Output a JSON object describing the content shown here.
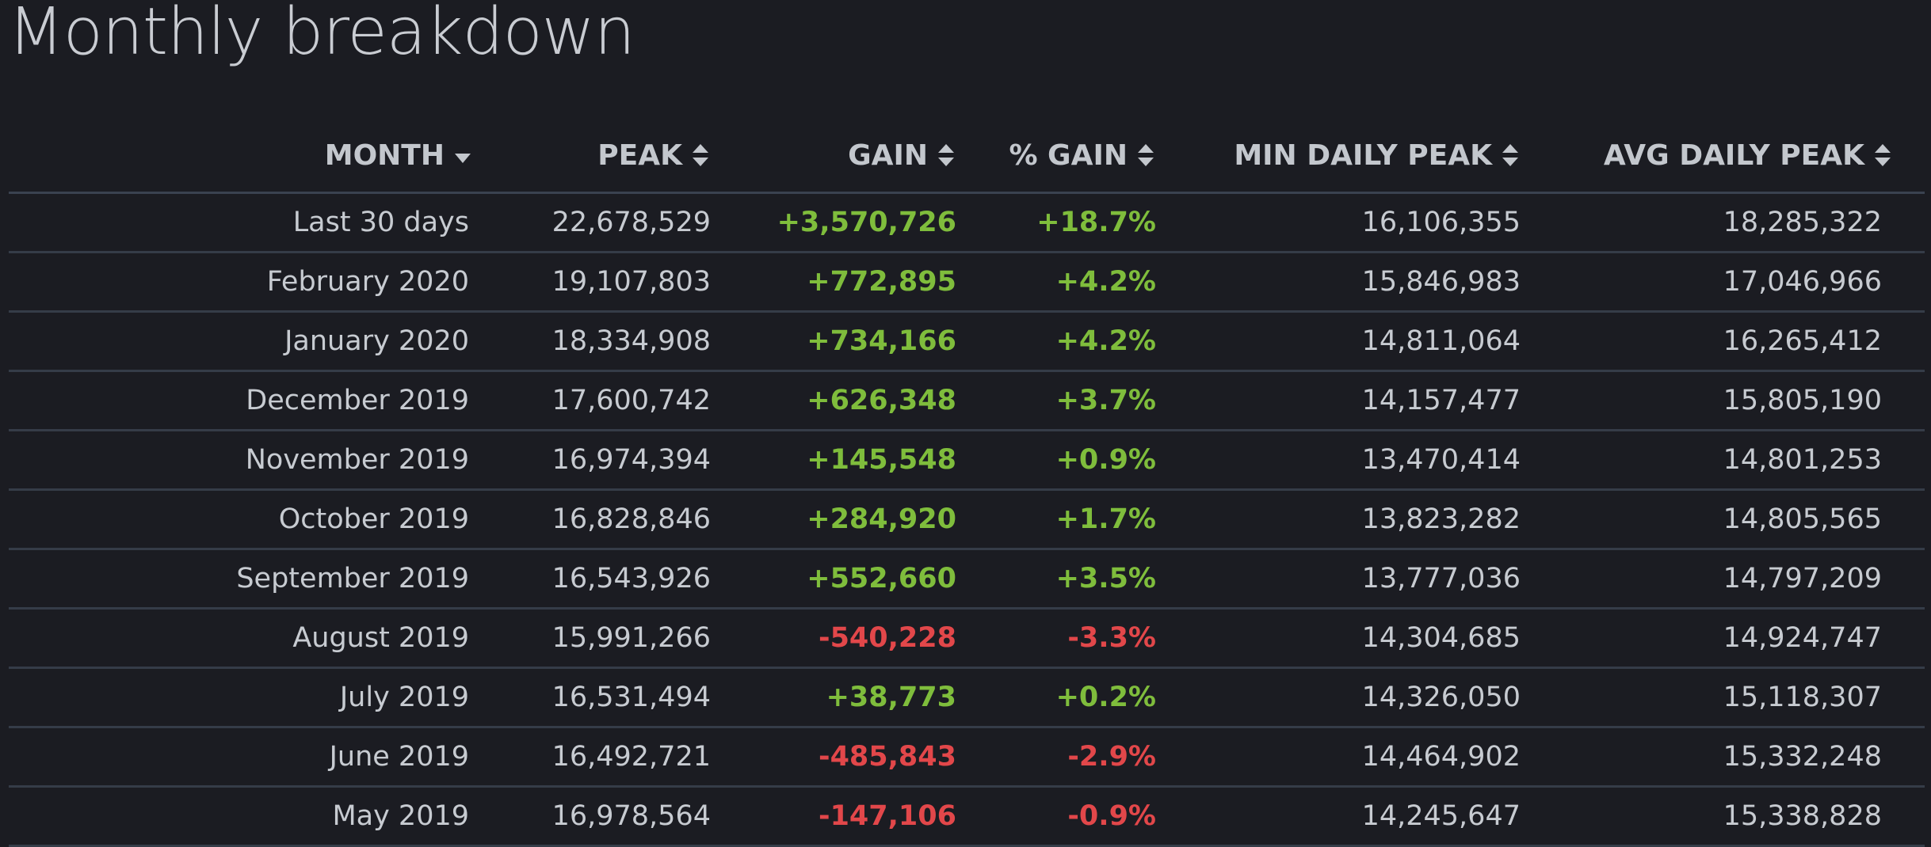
{
  "page": {
    "title": "Monthly breakdown"
  },
  "colors": {
    "background": "#1b1c22",
    "positive": "#7fbd3c",
    "negative": "#e2474a",
    "text": "#c7cbd1",
    "divider": "#353c48"
  },
  "table": {
    "headers": [
      {
        "label": "MONTH",
        "icon": "sort-desc-icon"
      },
      {
        "label": "PEAK",
        "icon": "sort-icon"
      },
      {
        "label": "GAIN",
        "icon": "sort-icon"
      },
      {
        "label": "% GAIN",
        "icon": "sort-icon"
      },
      {
        "label": "MIN DAILY PEAK",
        "icon": "sort-icon"
      },
      {
        "label": "AVG DAILY PEAK",
        "icon": "sort-icon"
      }
    ],
    "rows": [
      {
        "month": "Last 30 days",
        "peak": "22,678,529",
        "gain": "+3,570,726",
        "pct_gain": "+18.7%",
        "min_daily_peak": "16,106,355",
        "avg_daily_peak": "18,285,322",
        "trend": "pos"
      },
      {
        "month": "February 2020",
        "peak": "19,107,803",
        "gain": "+772,895",
        "pct_gain": "+4.2%",
        "min_daily_peak": "15,846,983",
        "avg_daily_peak": "17,046,966",
        "trend": "pos"
      },
      {
        "month": "January 2020",
        "peak": "18,334,908",
        "gain": "+734,166",
        "pct_gain": "+4.2%",
        "min_daily_peak": "14,811,064",
        "avg_daily_peak": "16,265,412",
        "trend": "pos"
      },
      {
        "month": "December 2019",
        "peak": "17,600,742",
        "gain": "+626,348",
        "pct_gain": "+3.7%",
        "min_daily_peak": "14,157,477",
        "avg_daily_peak": "15,805,190",
        "trend": "pos"
      },
      {
        "month": "November 2019",
        "peak": "16,974,394",
        "gain": "+145,548",
        "pct_gain": "+0.9%",
        "min_daily_peak": "13,470,414",
        "avg_daily_peak": "14,801,253",
        "trend": "pos"
      },
      {
        "month": "October 2019",
        "peak": "16,828,846",
        "gain": "+284,920",
        "pct_gain": "+1.7%",
        "min_daily_peak": "13,823,282",
        "avg_daily_peak": "14,805,565",
        "trend": "pos"
      },
      {
        "month": "September 2019",
        "peak": "16,543,926",
        "gain": "+552,660",
        "pct_gain": "+3.5%",
        "min_daily_peak": "13,777,036",
        "avg_daily_peak": "14,797,209",
        "trend": "pos"
      },
      {
        "month": "August 2019",
        "peak": "15,991,266",
        "gain": "-540,228",
        "pct_gain": "-3.3%",
        "min_daily_peak": "14,304,685",
        "avg_daily_peak": "14,924,747",
        "trend": "neg"
      },
      {
        "month": "July 2019",
        "peak": "16,531,494",
        "gain": "+38,773",
        "pct_gain": "+0.2%",
        "min_daily_peak": "14,326,050",
        "avg_daily_peak": "15,118,307",
        "trend": "pos"
      },
      {
        "month": "June 2019",
        "peak": "16,492,721",
        "gain": "-485,843",
        "pct_gain": "-2.9%",
        "min_daily_peak": "14,464,902",
        "avg_daily_peak": "15,332,248",
        "trend": "neg"
      },
      {
        "month": "May 2019",
        "peak": "16,978,564",
        "gain": "-147,106",
        "pct_gain": "-0.9%",
        "min_daily_peak": "14,245,647",
        "avg_daily_peak": "15,338,828",
        "trend": "neg"
      }
    ]
  }
}
